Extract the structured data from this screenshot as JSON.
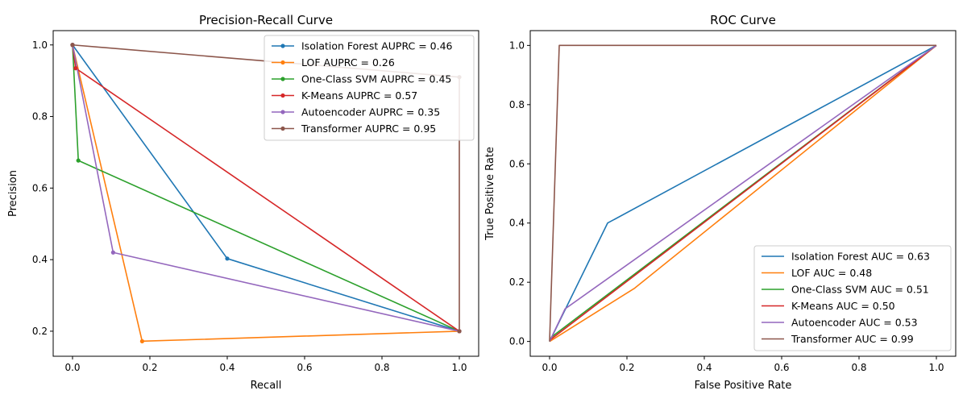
{
  "chart_data": [
    {
      "type": "line",
      "title": "Precision-Recall Curve",
      "xlabel": "Recall",
      "ylabel": "Precision",
      "xlim": [
        -0.05,
        1.05
      ],
      "ylim": [
        0.13,
        1.04
      ],
      "xticks": [
        0.0,
        0.2,
        0.4,
        0.6,
        0.8,
        1.0
      ],
      "xtick_labels": [
        "0.0",
        "0.2",
        "0.4",
        "0.6",
        "0.8",
        "1.0"
      ],
      "yticks": [
        0.2,
        0.4,
        0.6,
        0.8,
        1.0
      ],
      "ytick_labels": [
        "0.2",
        "0.4",
        "0.6",
        "0.8",
        "1.0"
      ],
      "markers": true,
      "legend_position": "top-right",
      "series": [
        {
          "name": "Isolation Forest AUPRC = 0.46",
          "color": "#1f77b4",
          "x": [
            0.0,
            0.4,
            1.0
          ],
          "y": [
            1.0,
            0.403,
            0.2
          ]
        },
        {
          "name": "LOF AUPRC = 0.26",
          "color": "#ff7f0e",
          "x": [
            0.0,
            0.18,
            1.0
          ],
          "y": [
            1.0,
            0.172,
            0.2
          ]
        },
        {
          "name": "One-Class SVM AUPRC = 0.45",
          "color": "#2ca02c",
          "x": [
            0.0,
            0.015,
            1.0
          ],
          "y": [
            1.0,
            0.677,
            0.2
          ]
        },
        {
          "name": "K-Means AUPRC = 0.57",
          "color": "#d62728",
          "x": [
            0.0,
            0.008,
            1.0
          ],
          "y": [
            1.0,
            0.935,
            0.2
          ]
        },
        {
          "name": "Autoencoder AUPRC = 0.35",
          "color": "#9467bd",
          "x": [
            0.0,
            0.105,
            1.0
          ],
          "y": [
            1.0,
            0.42,
            0.2
          ]
        },
        {
          "name": "Transformer AUPRC = 0.95",
          "color": "#8c564b",
          "x": [
            0.0,
            1.0,
            1.0
          ],
          "y": [
            1.0,
            0.91,
            0.2
          ]
        }
      ]
    },
    {
      "type": "line",
      "title": "ROC Curve",
      "xlabel": "False Positive Rate",
      "ylabel": "True Positive Rate",
      "xlim": [
        -0.05,
        1.05
      ],
      "ylim": [
        -0.05,
        1.05
      ],
      "xticks": [
        0.0,
        0.2,
        0.4,
        0.6,
        0.8,
        1.0
      ],
      "xtick_labels": [
        "0.0",
        "0.2",
        "0.4",
        "0.6",
        "0.8",
        "1.0"
      ],
      "yticks": [
        0.0,
        0.2,
        0.4,
        0.6,
        0.8,
        1.0
      ],
      "ytick_labels": [
        "0.0",
        "0.2",
        "0.4",
        "0.6",
        "0.8",
        "1.0"
      ],
      "markers": false,
      "legend_position": "bottom-right",
      "series": [
        {
          "name": "Isolation Forest AUC = 0.63",
          "color": "#1f77b4",
          "x": [
            0.0,
            0.15,
            1.0
          ],
          "y": [
            0.0,
            0.4,
            1.0
          ]
        },
        {
          "name": "LOF AUC = 0.48",
          "color": "#ff7f0e",
          "x": [
            0.0,
            0.22,
            1.0
          ],
          "y": [
            0.0,
            0.18,
            1.0
          ]
        },
        {
          "name": "One-Class SVM AUC = 0.51",
          "color": "#2ca02c",
          "x": [
            0.0,
            0.005,
            1.0
          ],
          "y": [
            0.0,
            0.015,
            1.0
          ]
        },
        {
          "name": "K-Means AUC = 0.50",
          "color": "#d62728",
          "x": [
            0.0,
            0.003,
            1.0
          ],
          "y": [
            0.0,
            0.007,
            1.0
          ]
        },
        {
          "name": "Autoencoder AUC = 0.53",
          "color": "#9467bd",
          "x": [
            0.0,
            0.04,
            1.0
          ],
          "y": [
            0.0,
            0.11,
            1.0
          ]
        },
        {
          "name": "Transformer AUC = 0.99",
          "color": "#8c564b",
          "x": [
            0.0,
            0.025,
            1.0
          ],
          "y": [
            0.0,
            1.0,
            1.0
          ]
        }
      ]
    }
  ]
}
